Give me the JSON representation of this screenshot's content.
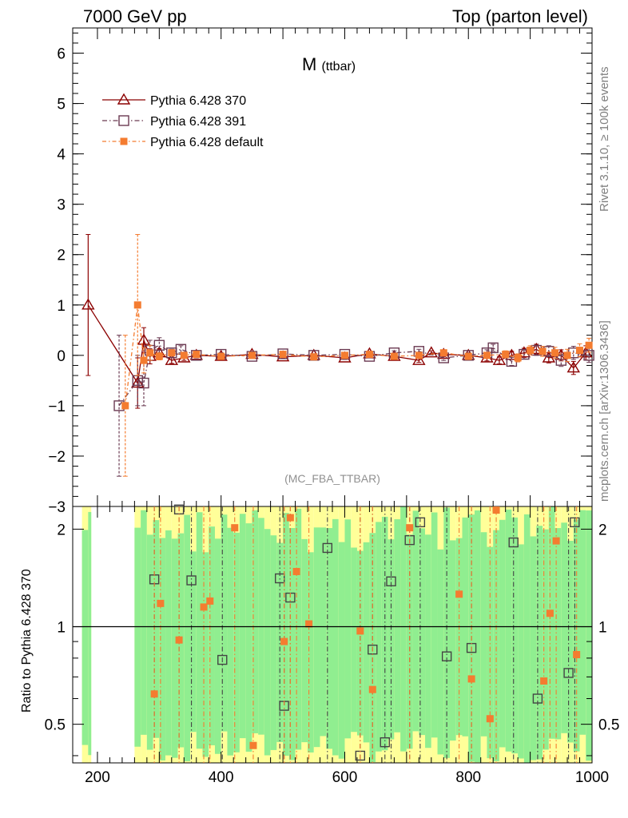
{
  "header": {
    "left": "7000 GeV pp",
    "right": "Top (parton level)"
  },
  "side_labels": {
    "rivet": "Rivet 3.1.10, ≥ 100k events",
    "mcplots": "mcplots.cern.ch [arXiv:1306.3436]"
  },
  "chart_data": [
    {
      "type": "line",
      "panel": "main",
      "title_main": "M",
      "title_sub": "(ttbar)",
      "annotation": "(MC_FBA_TTBAR)",
      "xlabel": "",
      "ylabel": "",
      "xlim": [
        160,
        1000
      ],
      "ylim": [
        -3,
        6.5
      ],
      "yticks": [
        "−2",
        "−1",
        "0",
        "1",
        "2",
        "3",
        "4",
        "5",
        "6"
      ],
      "ytick_values": [
        -2,
        -1,
        0,
        1,
        2,
        3,
        4,
        5,
        6
      ],
      "bottom_tick_label": "−3",
      "legend": [
        "Pythia 6.428 370",
        "Pythia 6.428 391",
        "Pythia 6.428 default"
      ],
      "colors": [
        "#8b0000",
        "#6b3a52",
        "#f47c30"
      ],
      "series": [
        {
          "name": "Pythia 6.428 370",
          "marker": "triangle",
          "x": [
            185,
            265,
            275,
            285,
            300,
            320,
            340,
            360,
            400,
            450,
            500,
            550,
            600,
            640,
            680,
            720,
            740,
            760,
            800,
            830,
            850,
            870,
            890,
            910,
            930,
            950,
            970,
            990
          ],
          "y": [
            1.0,
            -0.55,
            0.3,
            -0.02,
            0.05,
            -0.1,
            -0.05,
            0.0,
            -0.02,
            0.02,
            -0.03,
            0.0,
            -0.05,
            0.03,
            -0.02,
            -0.1,
            0.05,
            0.02,
            0.0,
            -0.05,
            -0.1,
            0.0,
            0.05,
            0.12,
            -0.05,
            0.0,
            -0.25,
            0.05
          ],
          "yerr": [
            1.4,
            0.5,
            0.25,
            0.15,
            0.08,
            0.06,
            0.05,
            0.04,
            0.03,
            0.03,
            0.03,
            0.03,
            0.03,
            0.03,
            0.03,
            0.04,
            0.04,
            0.05,
            0.05,
            0.06,
            0.07,
            0.08,
            0.09,
            0.1,
            0.1,
            0.11,
            0.13,
            0.14
          ]
        },
        {
          "name": "Pythia 6.428 391",
          "marker": "square-open",
          "x": [
            235,
            265,
            275,
            285,
            300,
            320,
            335,
            360,
            400,
            450,
            500,
            550,
            600,
            640,
            680,
            720,
            760,
            800,
            830,
            840,
            870,
            890,
            910,
            930,
            950,
            970,
            995
          ],
          "y": [
            -1.0,
            -0.5,
            -0.55,
            0.1,
            0.2,
            0.05,
            0.12,
            0.0,
            0.02,
            -0.02,
            0.03,
            0.0,
            0.02,
            -0.02,
            0.05,
            0.08,
            -0.05,
            0.0,
            0.05,
            0.15,
            -0.12,
            0.02,
            0.1,
            0.08,
            -0.1,
            0.05,
            0.0
          ],
          "yerr": [
            1.4,
            0.5,
            0.45,
            0.2,
            0.15,
            0.07,
            0.07,
            0.05,
            0.03,
            0.03,
            0.03,
            0.03,
            0.03,
            0.03,
            0.04,
            0.04,
            0.05,
            0.05,
            0.06,
            0.07,
            0.08,
            0.09,
            0.1,
            0.11,
            0.12,
            0.13,
            0.14
          ]
        },
        {
          "name": "Pythia 6.428 default",
          "marker": "square-filled",
          "x": [
            245,
            265,
            275,
            285,
            300,
            320,
            340,
            360,
            400,
            450,
            500,
            550,
            600,
            640,
            680,
            720,
            760,
            800,
            830,
            860,
            880,
            900,
            920,
            940,
            960,
            980,
            995
          ],
          "y": [
            -1.0,
            1.0,
            -0.1,
            0.05,
            -0.02,
            0.05,
            0.0,
            0.02,
            -0.02,
            0.0,
            0.02,
            -0.03,
            0.0,
            0.02,
            -0.02,
            0.0,
            0.05,
            -0.02,
            0.0,
            0.02,
            -0.05,
            0.1,
            0.08,
            0.05,
            0.0,
            0.1,
            0.2
          ],
          "yerr": [
            1.4,
            1.4,
            0.25,
            0.15,
            0.07,
            0.06,
            0.05,
            0.04,
            0.03,
            0.03,
            0.03,
            0.03,
            0.03,
            0.03,
            0.03,
            0.04,
            0.04,
            0.05,
            0.06,
            0.07,
            0.08,
            0.09,
            0.1,
            0.11,
            0.12,
            0.13,
            0.14
          ]
        }
      ]
    },
    {
      "type": "line",
      "panel": "ratio",
      "ylabel": "Ratio to Pythia 6.428 370",
      "xlabel": "",
      "xlim": [
        160,
        1000
      ],
      "ylim": [
        0.38,
        2.35
      ],
      "yscale": "log",
      "yticks": [
        "0.5",
        "1",
        "2"
      ],
      "ytick_values": [
        0.5,
        1,
        2
      ],
      "xticks": [
        "200",
        "400",
        "600",
        "800",
        "1000"
      ],
      "xtick_values": [
        200,
        400,
        600,
        800,
        1000
      ],
      "bands": {
        "green": "#90ee90",
        "yellow": "#ffff99",
        "x_ranges": [
          [
            175,
            190
          ],
          [
            260,
            1000
          ]
        ]
      },
      "series": [
        {
          "name": "Pythia 6.428 391",
          "marker": "square-open",
          "x": [
            292,
            332,
            352,
            402,
            495,
            502,
            512,
            572,
            625,
            645,
            665,
            675,
            705,
            722,
            765,
            805,
            873,
            912,
            962,
            972
          ],
          "y": [
            1.4,
            2.3,
            1.39,
            0.79,
            1.41,
            0.57,
            1.23,
            1.75,
            0.4,
            0.85,
            0.44,
            1.38,
            1.85,
            2.1,
            0.81,
            0.86,
            1.82,
            0.6,
            0.72,
            2.1
          ]
        },
        {
          "name": "Pythia 6.428 default",
          "marker": "square-filled",
          "x": [
            292,
            302,
            332,
            372,
            382,
            422,
            452,
            502,
            512,
            522,
            542,
            625,
            645,
            705,
            785,
            805,
            835,
            845,
            922,
            932,
            942,
            975
          ],
          "y": [
            0.62,
            1.18,
            0.91,
            1.15,
            1.2,
            2.02,
            0.43,
            0.9,
            2.17,
            1.48,
            1.02,
            0.97,
            0.64,
            2.02,
            1.26,
            0.69,
            0.52,
            2.29,
            0.68,
            1.1,
            1.84,
            0.82
          ]
        }
      ]
    }
  ]
}
